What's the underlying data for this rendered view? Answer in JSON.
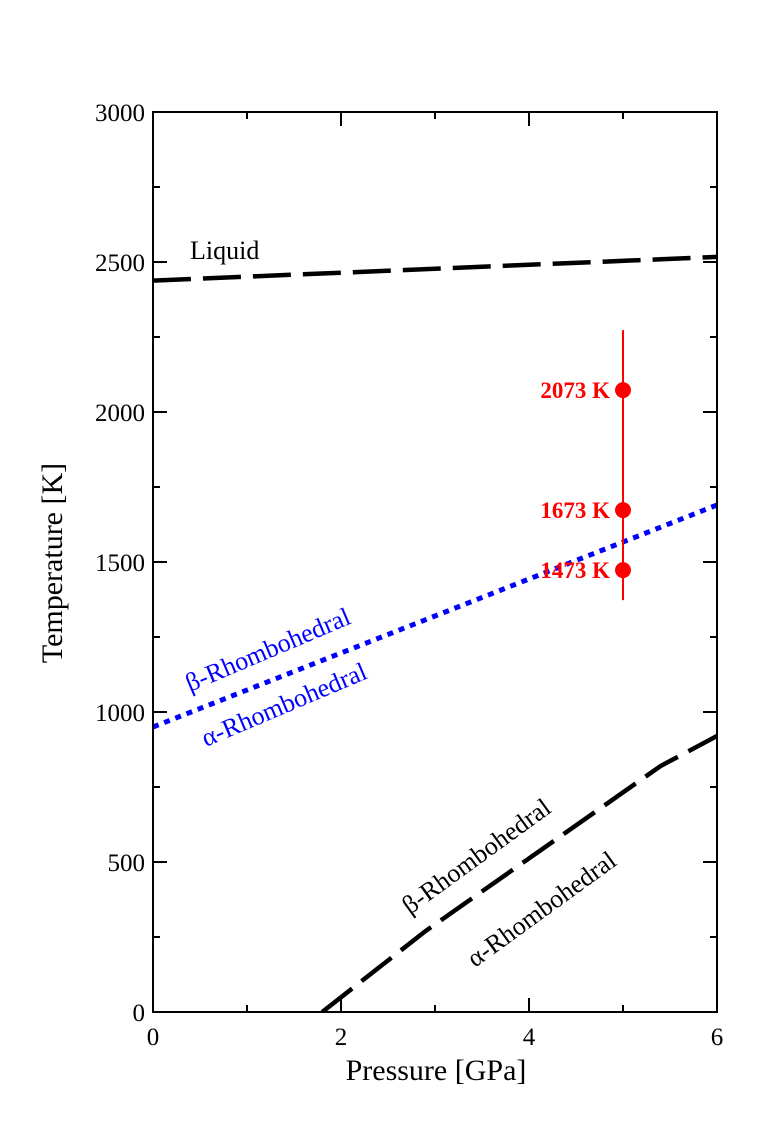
{
  "chart_data": {
    "type": "line",
    "title": "",
    "xlabel": "Pressure [GPa]",
    "ylabel": "Temperature [K]",
    "xlim": [
      0,
      6
    ],
    "ylim": [
      0,
      3000
    ],
    "xticks": [
      0,
      2,
      4,
      6
    ],
    "yticks": [
      0,
      500,
      1000,
      1500,
      2000,
      2500,
      3000
    ],
    "grid": false,
    "series": [
      {
        "color": "#000000",
        "style": "long-dash",
        "x": [
          0,
          6
        ],
        "y": [
          2438,
          2517
        ]
      },
      {
        "color": "#0000ff",
        "style": "dotted",
        "x": [
          0,
          6
        ],
        "y": [
          950,
          1690
        ]
      },
      {
        "color": "#000000",
        "style": "long-dash",
        "x": [
          1.8,
          2.9,
          5.4,
          6
        ],
        "y": [
          0,
          270,
          820,
          920
        ]
      }
    ],
    "region_labels": [
      {
        "text": "Liquid",
        "color": "#000000"
      },
      {
        "text": "β-Rhombohedral",
        "color": "#0000ff"
      },
      {
        "text": "α-Rhombohedral",
        "color": "#0000ff"
      },
      {
        "text": "β-Rhombohedral",
        "color": "#000000"
      },
      {
        "text": "α-Rhombohedral",
        "color": "#000000"
      }
    ],
    "points": [
      {
        "x": 5,
        "y": 2073,
        "label": "2073 K"
      },
      {
        "x": 5,
        "y": 1673,
        "label": "1673 K"
      },
      {
        "x": 5,
        "y": 1473,
        "label": "1473 K"
      }
    ],
    "vline": {
      "x": 5,
      "y_range": [
        1373,
        2273
      ]
    },
    "point_color": "#ff0000"
  }
}
